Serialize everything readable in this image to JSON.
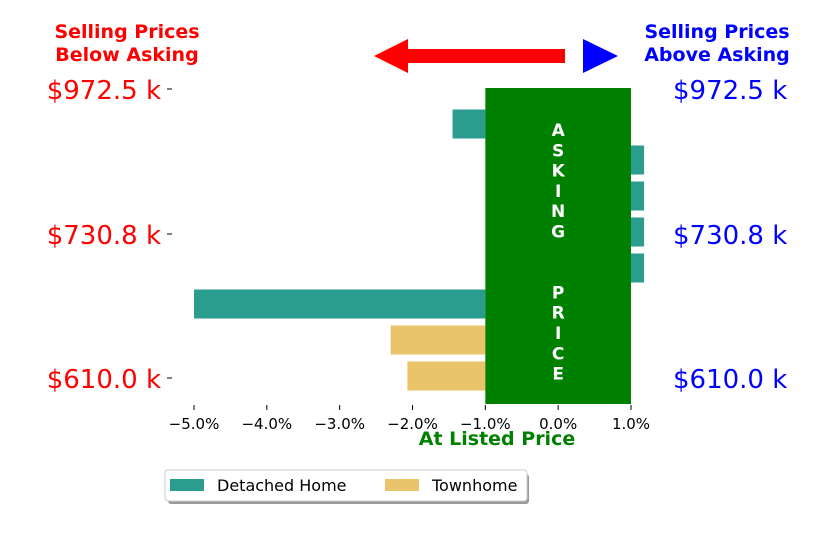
{
  "chart_data": {
    "type": "bar",
    "orientation": "horizontal",
    "header_left": [
      "Selling Prices",
      "Below Asking"
    ],
    "header_right": [
      "Selling Prices",
      "Above Asking"
    ],
    "band_label": "ASKING  PRICE",
    "xlabel": "At Listed Price",
    "x_ticks": [
      "−5.0%",
      "−4.0%",
      "−3.0%",
      "−2.0%",
      "−1.0%",
      "0.0%",
      "1.0%"
    ],
    "x_tick_values": [
      -5,
      -4,
      -3,
      -2,
      -1,
      0,
      1
    ],
    "xlim": [
      -5.0,
      1.0
    ],
    "band_range": [
      -1.0,
      1.0
    ],
    "price_labels": [
      "$972.5 k",
      "$730.8 k",
      "$610.0 k"
    ],
    "price_label_rows": [
      0,
      4,
      8
    ],
    "series": [
      {
        "name": "Detached Home",
        "color": "#2a9d8f"
      },
      {
        "name": "Townhome",
        "color": "#e9c46a"
      }
    ],
    "bars": [
      {
        "series": 0,
        "value": -1.45
      },
      {
        "series": 0,
        "value": 1.18
      },
      {
        "series": 0,
        "value": 1.18
      },
      {
        "series": 0,
        "value": 1.18
      },
      {
        "series": 0,
        "value": 1.18
      },
      {
        "series": 0,
        "value": -5.0
      },
      {
        "series": 1,
        "value": -2.3
      },
      {
        "series": 1,
        "value": -2.07
      }
    ],
    "colors": {
      "below": "#ff0000",
      "above": "#0000ff",
      "band": "#008000"
    },
    "legend_position": "bottom-center",
    "grid": false
  }
}
